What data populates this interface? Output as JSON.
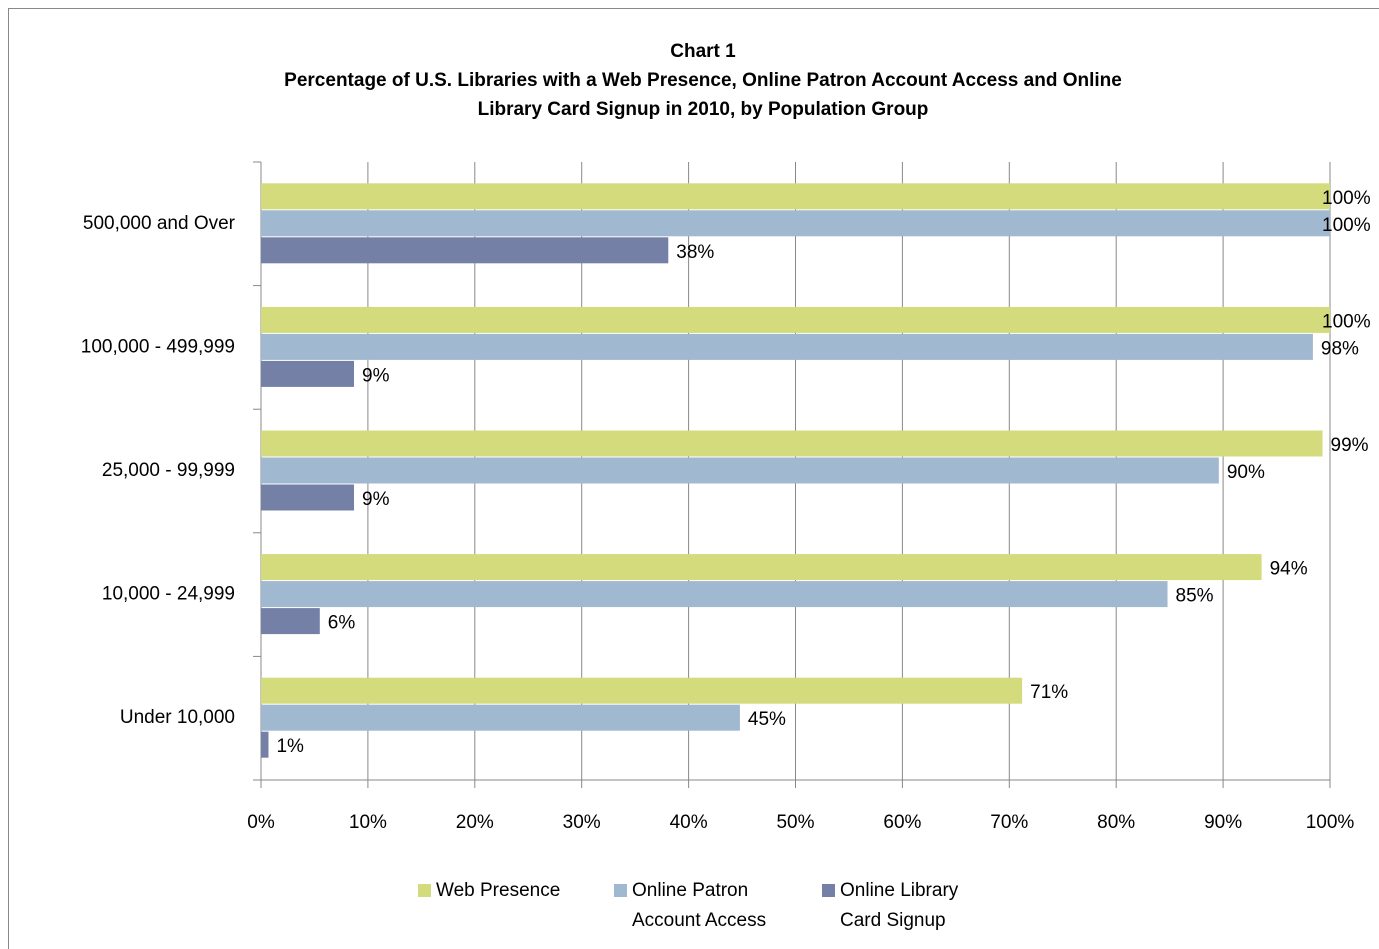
{
  "chart_data": {
    "type": "hbar",
    "title": [
      "Chart 1",
      "Percentage of U.S. Libraries with a Web Presence, Online Patron Account Access and Online",
      "Library Card Signup in 2010, by Population Group"
    ],
    "categories": [
      "500,000 and Over",
      "100,000 - 499,999",
      "25,000 - 99,999",
      "10,000 - 24,999",
      "Under 10,000"
    ],
    "series": [
      {
        "name": "Web Presence",
        "color": "#d4db7c",
        "values": [
          100,
          100,
          99.3,
          93.6,
          71.2
        ],
        "value_labels": [
          "100%",
          "100%",
          "99%",
          "94%",
          "71%"
        ]
      },
      {
        "name": "Online Patron Account Access",
        "color": "#a0b8d0",
        "values": [
          100,
          98.4,
          89.6,
          84.8,
          44.8
        ],
        "value_labels": [
          "100%",
          "98%",
          "90%",
          "85%",
          "45%"
        ]
      },
      {
        "name": "Online Library Card Signup",
        "color": "#7480a6",
        "values": [
          38.1,
          8.7,
          8.7,
          5.5,
          0.7
        ],
        "value_labels": [
          "38%",
          "9%",
          "9%",
          "6%",
          "1%"
        ]
      }
    ],
    "xlim": [
      0,
      100
    ],
    "xticks": [
      {
        "value": 0,
        "label": "0%"
      },
      {
        "value": 10,
        "label": "10%"
      },
      {
        "value": 20,
        "label": "20%"
      },
      {
        "value": 30,
        "label": "30%"
      },
      {
        "value": 40,
        "label": "40%"
      },
      {
        "value": 50,
        "label": "50%"
      },
      {
        "value": 60,
        "label": "60%"
      },
      {
        "value": 70,
        "label": "70%"
      },
      {
        "value": 80,
        "label": "80%"
      },
      {
        "value": 90,
        "label": "90%"
      },
      {
        "value": 100,
        "label": "100%"
      }
    ],
    "grid": true,
    "legend": "bottom"
  }
}
